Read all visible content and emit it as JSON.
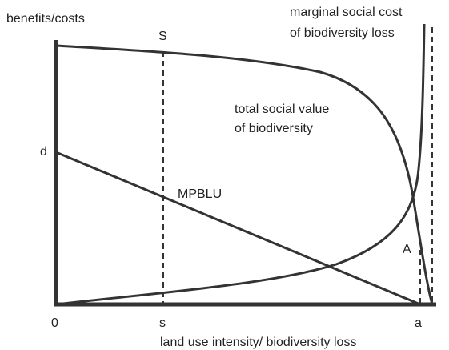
{
  "axes": {
    "y_label": "benefits/costs",
    "x_label": "land use intensity/ biodiversity loss",
    "origin": "0"
  },
  "points": {
    "S": "S",
    "d": "d",
    "A": "A",
    "s": "s",
    "a": "a"
  },
  "curves": {
    "marginal_social_cost": [
      "marginal social cost",
      "of biodiversity loss"
    ],
    "total_social_value": [
      "total social value",
      "of biodiversity"
    ],
    "mpblu": "MPBLU"
  }
}
